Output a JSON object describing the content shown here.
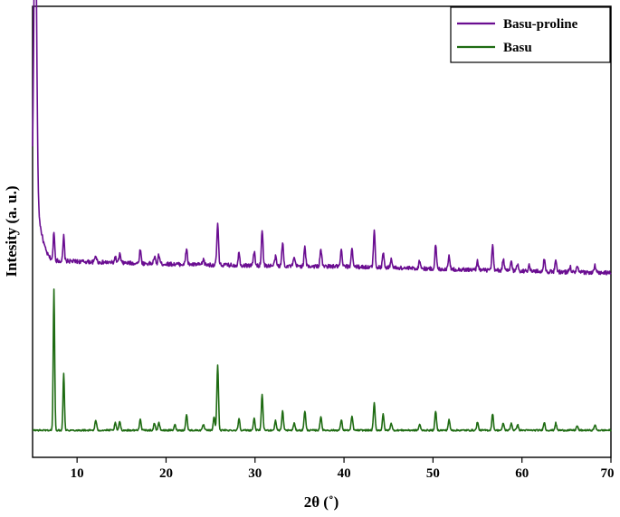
{
  "chart_data": {
    "type": "line",
    "xlabel": "2θ (˚)",
    "ylabel": "Intesity (a. u.)",
    "xlim": [
      5,
      70
    ],
    "x_ticks": [
      10,
      20,
      30,
      40,
      50,
      60,
      70
    ],
    "x_tick_labels": [
      "10",
      "20",
      "30",
      "40",
      "50",
      "60",
      "70"
    ],
    "ylim": [
      0,
      100
    ],
    "y_ticks_labeled": false,
    "grid": false,
    "legend_position": "top-right",
    "series": [
      {
        "name": "Basu-proline",
        "color": "#6a0d91",
        "baseline": 42,
        "peaks": [
          [
            5.3,
            70
          ],
          [
            7.4,
            6.5
          ],
          [
            8.5,
            5.5
          ],
          [
            12.1,
            1.5
          ],
          [
            14.3,
            1.2
          ],
          [
            14.8,
            2.0
          ],
          [
            17.1,
            3.1
          ],
          [
            18.7,
            1.5
          ],
          [
            19.2,
            2.0
          ],
          [
            22.3,
            3.5
          ],
          [
            24.2,
            1.2
          ],
          [
            25.8,
            9.1
          ],
          [
            28.2,
            2.8
          ],
          [
            29.9,
            3.1
          ],
          [
            30.8,
            8.0
          ],
          [
            32.3,
            2.0
          ],
          [
            33.1,
            5.2
          ],
          [
            34.4,
            1.8
          ],
          [
            35.6,
            4.1
          ],
          [
            37.4,
            3.9
          ],
          [
            39.7,
            3.5
          ],
          [
            40.9,
            4.2
          ],
          [
            43.4,
            8.0
          ],
          [
            44.4,
            3.5
          ],
          [
            45.3,
            2.0
          ],
          [
            48.5,
            1.8
          ],
          [
            50.3,
            5.3
          ],
          [
            51.8,
            3.2
          ],
          [
            55.0,
            2.1
          ],
          [
            56.7,
            5.4
          ],
          [
            57.9,
            2.6
          ],
          [
            58.8,
            2.1
          ],
          [
            59.5,
            1.6
          ],
          [
            60.8,
            1.6
          ],
          [
            62.5,
            2.7
          ],
          [
            63.8,
            2.3
          ],
          [
            65.4,
            1.3
          ],
          [
            66.2,
            1.3
          ],
          [
            68.2,
            1.5
          ]
        ]
      },
      {
        "name": "Basu",
        "color": "#1e6b12",
        "baseline": 6,
        "peaks": [
          [
            7.4,
            31.3
          ],
          [
            8.5,
            12.8
          ],
          [
            12.1,
            2.2
          ],
          [
            14.3,
            1.6
          ],
          [
            14.8,
            2.0
          ],
          [
            17.1,
            2.6
          ],
          [
            18.7,
            1.6
          ],
          [
            19.2,
            1.6
          ],
          [
            21.0,
            1.2
          ],
          [
            22.3,
            3.5
          ],
          [
            24.2,
            1.3
          ],
          [
            25.4,
            3.0
          ],
          [
            25.8,
            14.3
          ],
          [
            28.2,
            2.6
          ],
          [
            29.9,
            2.6
          ],
          [
            30.8,
            7.8
          ],
          [
            32.3,
            2.1
          ],
          [
            33.1,
            4.3
          ],
          [
            34.4,
            1.6
          ],
          [
            35.6,
            4.3
          ],
          [
            37.4,
            3.1
          ],
          [
            39.7,
            2.3
          ],
          [
            40.9,
            3.1
          ],
          [
            43.4,
            6.0
          ],
          [
            44.4,
            3.5
          ],
          [
            45.3,
            1.6
          ],
          [
            48.5,
            1.3
          ],
          [
            50.3,
            4.2
          ],
          [
            51.8,
            2.3
          ],
          [
            55.0,
            1.8
          ],
          [
            56.7,
            3.7
          ],
          [
            57.9,
            1.6
          ],
          [
            58.8,
            1.6
          ],
          [
            59.5,
            1.3
          ],
          [
            62.5,
            1.8
          ],
          [
            63.8,
            1.6
          ],
          [
            66.2,
            1.0
          ],
          [
            68.2,
            1.2
          ]
        ]
      }
    ]
  }
}
